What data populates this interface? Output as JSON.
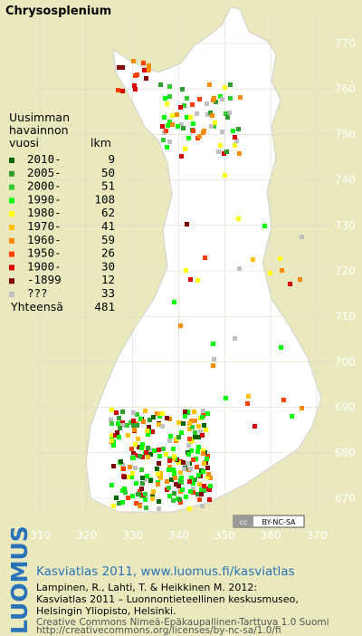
{
  "title": "Chrysosplenium",
  "legend": {
    "header": [
      "Uusimman",
      "havainnon",
      "vuosi"
    ],
    "count_header": "lkm",
    "rows": [
      {
        "label": "2010-",
        "count": 9,
        "color": "#006400"
      },
      {
        "label": "2005-",
        "count": 50,
        "color": "#2e9e2e"
      },
      {
        "label": "2000-",
        "count": 51,
        "color": "#33cc33"
      },
      {
        "label": "1990-",
        "count": 108,
        "color": "#00ff00"
      },
      {
        "label": "1980-",
        "count": 62,
        "color": "#ffff00"
      },
      {
        "label": "1970-",
        "count": 41,
        "color": "#ffc000"
      },
      {
        "label": "1960-",
        "count": 59,
        "color": "#ff8c00"
      },
      {
        "label": "1950-",
        "count": 26,
        "color": "#ff4000"
      },
      {
        "label": "1900-",
        "count": 30,
        "color": "#dd0000"
      },
      {
        "label": "-1899",
        "count": 12,
        "color": "#800000"
      },
      {
        "label": "???",
        "count": 33,
        "color": "#c0c0c0"
      }
    ],
    "total_label": "Yhteensä",
    "total": 481
  },
  "grid": {
    "xticks": [
      310,
      320,
      330,
      340,
      350,
      360,
      370
    ],
    "yticks": [
      670,
      680,
      690,
      700,
      710,
      720,
      730,
      740,
      750,
      760,
      770
    ]
  },
  "license_badge": "BY-NC-SA",
  "footer": {
    "logo": "LUOMUS",
    "heading": "Kasviatlas 2011, www.luomus.fi/kasviatlas",
    "citation": [
      "Lampinen, R., Lahti, T. & Heikkinen M. 2012:",
      "Kasviatlas 2011 – Luonnontieteellinen keskusmuseo,",
      "Helsingin Yliopisto, Helsinki."
    ],
    "license": [
      "Creative Commons Nimeä-Epäkaupallinen-Tarttuva 1.0 Suomi",
      "http://creativecommons.org/licenses/by-nc-sa/1.0/fi"
    ]
  }
}
